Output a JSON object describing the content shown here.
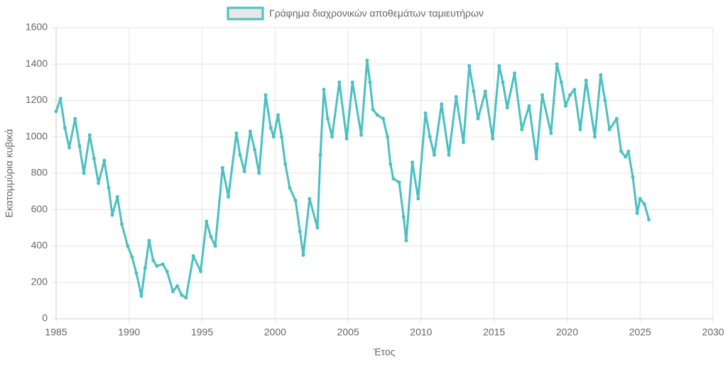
{
  "chart_data": {
    "type": "line",
    "xlabel": "Έτος",
    "ylabel": "Εκατομμύρια κυβικά",
    "xlim": [
      1985,
      2030
    ],
    "xticks": [
      1985,
      1990,
      1995,
      2000,
      2005,
      2010,
      2015,
      2020,
      2025,
      2030
    ],
    "ylim": [
      0,
      1600
    ],
    "yticks": [
      0,
      200,
      400,
      600,
      800,
      1000,
      1200,
      1400,
      1600
    ],
    "grid": true,
    "legend": "top",
    "x": [
      1985.0,
      1985.3,
      1985.6,
      1985.9,
      1986.3,
      1986.6,
      1986.9,
      1987.3,
      1987.6,
      1987.9,
      1988.3,
      1988.6,
      1988.85,
      1989.2,
      1989.5,
      1989.9,
      1990.2,
      1990.5,
      1990.84,
      1991.1,
      1991.37,
      1991.65,
      1991.9,
      1992.3,
      1992.6,
      1993.0,
      1993.3,
      1993.6,
      1993.9,
      1994.4,
      1994.9,
      1995.3,
      1995.6,
      1995.9,
      1996.4,
      1996.8,
      1997.35,
      1997.6,
      1997.9,
      1998.3,
      1998.6,
      1998.9,
      1999.35,
      1999.7,
      1999.9,
      2000.2,
      2000.45,
      2000.7,
      2001.0,
      2001.4,
      2001.7,
      2001.93,
      2002.36,
      2002.9,
      2003.1,
      2003.34,
      2003.6,
      2003.9,
      2004.4,
      2004.9,
      2005.3,
      2005.9,
      2006.3,
      2006.5,
      2006.7,
      2007.0,
      2007.4,
      2007.7,
      2007.9,
      2008.1,
      2008.5,
      2008.8,
      2008.98,
      2009.4,
      2009.8,
      2010.3,
      2010.6,
      2010.9,
      2011.4,
      2011.9,
      2012.4,
      2012.9,
      2013.3,
      2013.6,
      2013.9,
      2014.4,
      2014.9,
      2015.35,
      2015.6,
      2015.9,
      2016.4,
      2016.9,
      2017.4,
      2017.9,
      2018.3,
      2018.9,
      2019.3,
      2019.6,
      2019.9,
      2020.2,
      2020.5,
      2020.9,
      2021.3,
      2021.9,
      2022.3,
      2022.6,
      2022.9,
      2023.4,
      2023.7,
      2024.0,
      2024.2,
      2024.5,
      2024.8,
      2025.0,
      2025.3,
      2025.6
    ],
    "series": [
      {
        "name": "Γράφημα διαχρονικών αποθεμάτων ταμιευτήρων",
        "color": "#4bc0c0",
        "values": [
          1140,
          1210,
          1050,
          940,
          1100,
          950,
          800,
          1010,
          880,
          745,
          870,
          720,
          570,
          670,
          520,
          400,
          340,
          250,
          125,
          280,
          430,
          320,
          290,
          300,
          260,
          150,
          180,
          130,
          115,
          345,
          260,
          535,
          450,
          400,
          830,
          670,
          1020,
          900,
          810,
          1030,
          930,
          800,
          1230,
          1050,
          1000,
          1120,
          1000,
          850,
          720,
          650,
          480,
          350,
          660,
          500,
          900,
          1260,
          1100,
          1000,
          1300,
          990,
          1300,
          1010,
          1420,
          1300,
          1150,
          1120,
          1100,
          1000,
          850,
          770,
          750,
          560,
          430,
          860,
          660,
          1130,
          1000,
          900,
          1180,
          900,
          1220,
          970,
          1390,
          1250,
          1100,
          1250,
          990,
          1390,
          1300,
          1160,
          1350,
          1040,
          1170,
          880,
          1230,
          1020,
          1400,
          1300,
          1170,
          1230,
          1260,
          1040,
          1310,
          1000,
          1340,
          1200,
          1040,
          1100,
          920,
          890,
          920,
          780,
          580,
          660,
          630,
          545
        ]
      }
    ]
  }
}
